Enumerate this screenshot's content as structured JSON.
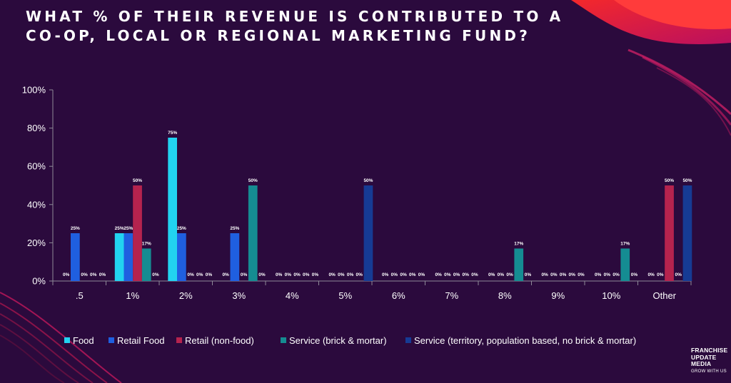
{
  "title_lines": [
    "WHAT % OF THEIR REVENUE IS CONTRIBUTED TO A",
    "CO-OP, LOCAL OR REGIONAL MARKETING FUND?"
  ],
  "logo": {
    "lines": [
      "FRANCHISE",
      "UPDATE",
      "MEDIA"
    ],
    "tagline": "GROW WITH US"
  },
  "chart_data": {
    "type": "bar",
    "categories": [
      ".5",
      "1%",
      "2%",
      "3%",
      "4%",
      "5%",
      "6%",
      "7%",
      "8%",
      "9%",
      "10%",
      "Other"
    ],
    "ylim": [
      0,
      100
    ],
    "yticks": [
      0,
      20,
      40,
      60,
      80,
      100
    ],
    "ytick_labels": [
      "0%",
      "20%",
      "40%",
      "60%",
      "80%",
      "100%"
    ],
    "legend_position": "bottom",
    "grid": false,
    "series": [
      {
        "name": "Food",
        "color": "#22d3f0",
        "values": [
          0,
          25,
          75,
          0,
          0,
          0,
          0,
          0,
          0,
          0,
          0,
          0
        ],
        "labels": [
          "0%",
          "25%",
          "75%",
          "0%",
          "0%",
          "0%",
          "0%",
          "0%",
          "0%",
          "0%",
          "0%",
          "0%"
        ]
      },
      {
        "name": "Retail Food",
        "color": "#1f5fe0",
        "values": [
          25,
          25,
          25,
          25,
          0,
          0,
          0,
          0,
          0,
          0,
          0,
          0
        ],
        "labels": [
          "25%",
          "25%",
          "25%",
          "25%",
          "0%",
          "0%",
          "0%",
          "0%",
          "0%",
          "0%",
          "0%",
          "0%"
        ]
      },
      {
        "name": "Retail (non-food)",
        "color": "#b5234e",
        "values": [
          0,
          50,
          0,
          0,
          0,
          0,
          0,
          0,
          0,
          0,
          0,
          50
        ],
        "labels": [
          "0%",
          "50%",
          "0%",
          "0%",
          "0%",
          "0%",
          "0%",
          "0%",
          "0%",
          "0%",
          "0%",
          "50%"
        ]
      },
      {
        "name": "Service (brick & mortar)",
        "color": "#158c92",
        "values": [
          0,
          17,
          0,
          50,
          0,
          0,
          0,
          0,
          17,
          0,
          17,
          0
        ],
        "labels": [
          "0%",
          "17%",
          "0%",
          "50%",
          "0%",
          "0%",
          "0%",
          "0%",
          "17%",
          "0%",
          "17%",
          "0%"
        ]
      },
      {
        "name": "Service (territory, population based, no brick & mortar)",
        "color": "#163b94",
        "values": [
          0,
          0,
          0,
          0,
          0,
          50,
          0,
          0,
          0,
          0,
          0,
          50
        ],
        "labels": [
          "0%",
          "0%",
          "0%",
          "0%",
          "0%",
          "50%",
          "0%",
          "0%",
          "0%",
          "0%",
          "0%",
          "50%"
        ]
      }
    ]
  }
}
